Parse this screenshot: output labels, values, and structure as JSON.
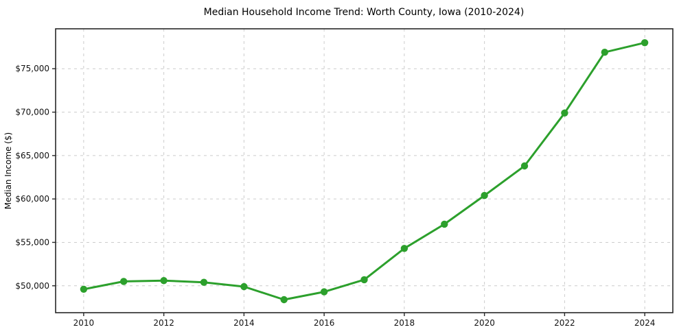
{
  "chart_data": {
    "type": "line",
    "title": "Median Household Income Trend: Worth County, Iowa (2010-2024)",
    "xlabel": "",
    "ylabel": "Median Income ($)",
    "x": [
      2010,
      2011,
      2012,
      2013,
      2014,
      2015,
      2016,
      2017,
      2018,
      2019,
      2020,
      2021,
      2022,
      2023,
      2024
    ],
    "series": [
      {
        "name": "Median Household Income",
        "values": [
          49600,
          50500,
          50600,
          50400,
          49900,
          48400,
          49300,
          50700,
          54300,
          57100,
          60400,
          63800,
          69900,
          76900,
          78000
        ]
      }
    ],
    "x_ticks": [
      2010,
      2012,
      2014,
      2016,
      2018,
      2020,
      2022,
      2024
    ],
    "x_tick_labels": [
      "2010",
      "2012",
      "2014",
      "2016",
      "2018",
      "2020",
      "2022",
      "2024"
    ],
    "y_ticks": [
      50000,
      55000,
      60000,
      65000,
      70000,
      75000
    ],
    "y_tick_labels": [
      "$50,000",
      "$55,000",
      "$60,000",
      "$65,000",
      "$70,000",
      "$75,000"
    ],
    "xlim": [
      2009.3,
      2024.7
    ],
    "ylim": [
      46900,
      79600
    ],
    "grid": true,
    "grid_style": "dashed",
    "legend": "none",
    "colors": {
      "line": "#2ca02c",
      "marker": "#2ca02c",
      "grid": "#cccccc",
      "spine": "#262626",
      "text": "#000000",
      "background": "#ffffff"
    }
  }
}
